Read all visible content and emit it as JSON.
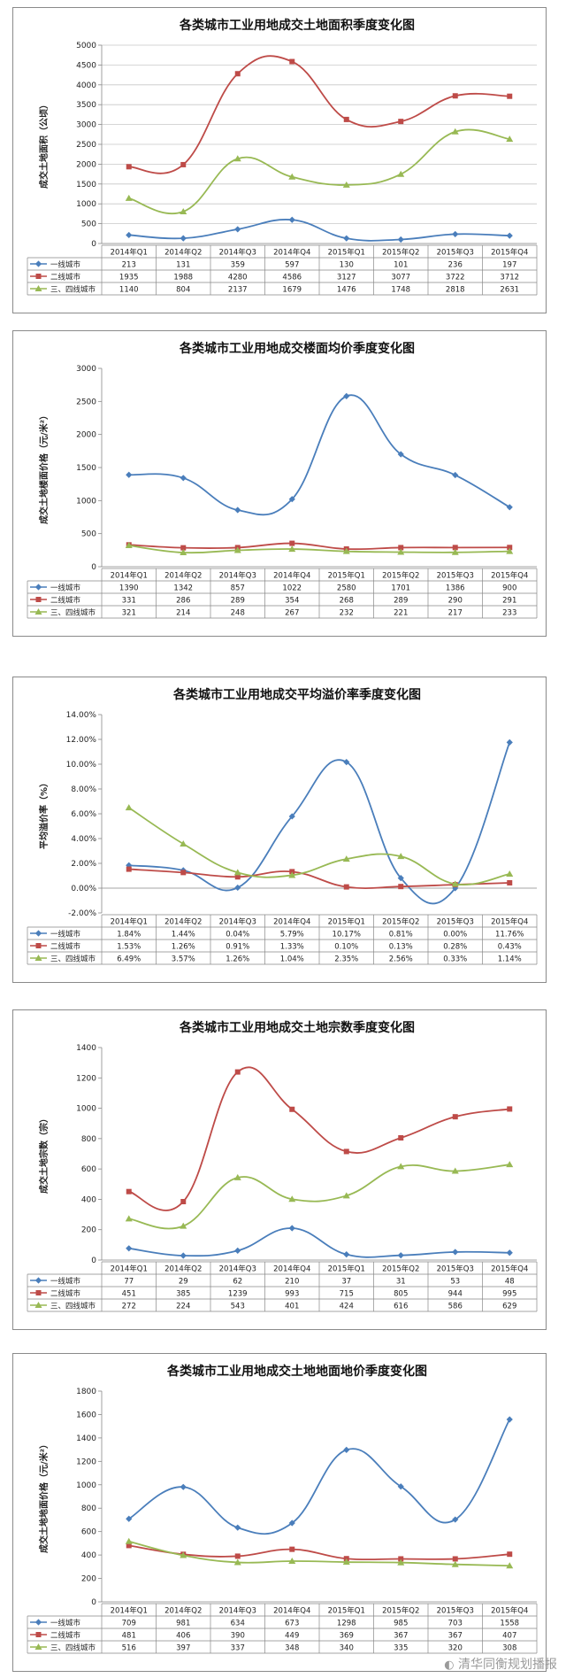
{
  "chart_data": [
    {
      "type": "line",
      "title": "各类城市工业用地成交土地面积季度变化图",
      "ylabel": "成交土地面积（公顷）",
      "ylim": [
        0,
        5000
      ],
      "yticks": [
        0,
        500,
        1000,
        1500,
        2000,
        2500,
        3000,
        3500,
        4000,
        4500,
        5000
      ],
      "categories": [
        "2014年Q1",
        "2014年Q2",
        "2014年Q3",
        "2014年Q4",
        "2015年Q1",
        "2015年Q2",
        "2015年Q3",
        "2015年Q4"
      ],
      "series": [
        {
          "name": "一线城市",
          "color": "#4a7ebb",
          "marker": "diamond",
          "values": [
            213,
            131,
            359,
            597,
            130,
            101,
            236,
            197
          ],
          "labels": [
            "213",
            "131",
            "359",
            "597",
            "130",
            "101",
            "236",
            "197"
          ]
        },
        {
          "name": "二线城市",
          "color": "#be4b48",
          "marker": "square",
          "values": [
            1935,
            1988,
            4280,
            4586,
            3127,
            3077,
            3722,
            3712
          ],
          "labels": [
            "1935",
            "1988",
            "4280",
            "4586",
            "3127",
            "3077",
            "3722",
            "3712"
          ]
        },
        {
          "name": "三、四线城市",
          "color": "#98b954",
          "marker": "triangle",
          "values": [
            1140,
            804,
            2137,
            1679,
            1476,
            1748,
            2818,
            2631
          ],
          "labels": [
            "1140",
            "804",
            "2137",
            "1679",
            "1476",
            "1748",
            "2818",
            "2631"
          ]
        }
      ],
      "grid": true
    },
    {
      "type": "line",
      "title": "各类城市工业用地成交楼面均价季度变化图",
      "ylabel": "成交土地楼面价格（元/米²）",
      "ylim": [
        0,
        3000
      ],
      "yticks": [
        0,
        500,
        1000,
        1500,
        2000,
        2500,
        3000
      ],
      "categories": [
        "2014年Q1",
        "2014年Q2",
        "2014年Q3",
        "2014年Q4",
        "2015年Q1",
        "2015年Q2",
        "2015年Q3",
        "2015年Q4"
      ],
      "series": [
        {
          "name": "一线城市",
          "color": "#4a7ebb",
          "marker": "diamond",
          "values": [
            1390,
            1342,
            857,
            1022,
            2580,
            1701,
            1386,
            900
          ],
          "labels": [
            "1390",
            "1342",
            "857",
            "1022",
            "2580",
            "1701",
            "1386",
            "900"
          ]
        },
        {
          "name": "二线城市",
          "color": "#be4b48",
          "marker": "square",
          "values": [
            331,
            286,
            289,
            354,
            268,
            289,
            290,
            291
          ],
          "labels": [
            "331",
            "286",
            "289",
            "354",
            "268",
            "289",
            "290",
            "291"
          ]
        },
        {
          "name": "三、四线城市",
          "color": "#98b954",
          "marker": "triangle",
          "values": [
            321,
            214,
            248,
            267,
            232,
            221,
            217,
            233
          ],
          "labels": [
            "321",
            "214",
            "248",
            "267",
            "232",
            "221",
            "217",
            "233"
          ]
        }
      ],
      "grid": false
    },
    {
      "type": "line",
      "title": "各类城市工业用地成交平均溢价率季度变化图",
      "ylabel": "平均溢价率（%）",
      "ylim": [
        -2,
        14
      ],
      "yticks": [
        -2,
        0,
        2,
        4,
        6,
        8,
        10,
        12,
        14
      ],
      "ytick_labels": [
        "-2.00%",
        "0.00%",
        "2.00%",
        "4.00%",
        "6.00%",
        "8.00%",
        "10.00%",
        "12.00%",
        "14.00%"
      ],
      "categories": [
        "2014年Q1",
        "2014年Q2",
        "2014年Q3",
        "2014年Q4",
        "2015年Q1",
        "2015年Q2",
        "2015年Q3",
        "2015年Q4"
      ],
      "series": [
        {
          "name": "一线城市",
          "color": "#4a7ebb",
          "marker": "diamond",
          "values": [
            1.84,
            1.44,
            0.04,
            5.79,
            10.17,
            0.81,
            0.0,
            11.76
          ],
          "labels": [
            "1.84%",
            "1.44%",
            "0.04%",
            "5.79%",
            "10.17%",
            "0.81%",
            "0.00%",
            "11.76%"
          ]
        },
        {
          "name": "二线城市",
          "color": "#be4b48",
          "marker": "square",
          "values": [
            1.53,
            1.26,
            0.91,
            1.33,
            0.1,
            0.13,
            0.28,
            0.43
          ],
          "labels": [
            "1.53%",
            "1.26%",
            "0.91%",
            "1.33%",
            "0.10%",
            "0.13%",
            "0.28%",
            "0.43%"
          ]
        },
        {
          "name": "三、四线城市",
          "color": "#98b954",
          "marker": "triangle",
          "values": [
            6.49,
            3.57,
            1.26,
            1.04,
            2.35,
            2.56,
            0.33,
            1.14
          ],
          "labels": [
            "6.49%",
            "3.57%",
            "1.26%",
            "1.04%",
            "2.35%",
            "2.56%",
            "0.33%",
            "1.14%"
          ]
        }
      ],
      "grid": false
    },
    {
      "type": "line",
      "title": "各类城市工业用地成交土地宗数季度变化图",
      "ylabel": "成交土地宗数（宗）",
      "ylim": [
        0,
        1400
      ],
      "yticks": [
        0,
        200,
        400,
        600,
        800,
        1000,
        1200,
        1400
      ],
      "categories": [
        "2014年Q1",
        "2014年Q2",
        "2014年Q3",
        "2014年Q4",
        "2015年Q1",
        "2015年Q2",
        "2015年Q3",
        "2015年Q4"
      ],
      "series": [
        {
          "name": "一线城市",
          "color": "#4a7ebb",
          "marker": "diamond",
          "values": [
            77,
            29,
            62,
            210,
            37,
            31,
            53,
            48
          ],
          "labels": [
            "77",
            "29",
            "62",
            "210",
            "37",
            "31",
            "53",
            "48"
          ]
        },
        {
          "name": "二线城市",
          "color": "#be4b48",
          "marker": "square",
          "values": [
            451,
            385,
            1239,
            993,
            715,
            805,
            944,
            995
          ],
          "labels": [
            "451",
            "385",
            "1239",
            "993",
            "715",
            "805",
            "944",
            "995"
          ]
        },
        {
          "name": "三、四线城市",
          "color": "#98b954",
          "marker": "triangle",
          "values": [
            272,
            224,
            543,
            401,
            424,
            616,
            586,
            629
          ],
          "labels": [
            "272",
            "224",
            "543",
            "401",
            "424",
            "616",
            "586",
            "629"
          ]
        }
      ],
      "grid": false
    },
    {
      "type": "line",
      "title": "各类城市工业用地成交土地地面地价季度变化图",
      "ylabel": "成交土地地面价格（元/米²）",
      "ylim": [
        0,
        1800
      ],
      "yticks": [
        0,
        200,
        400,
        600,
        800,
        1000,
        1200,
        1400,
        1600,
        1800
      ],
      "categories": [
        "2014年Q1",
        "2014年Q2",
        "2014年Q3",
        "2014年Q4",
        "2015年Q1",
        "2015年Q2",
        "2015年Q3",
        "2015年Q4"
      ],
      "series": [
        {
          "name": "一线城市",
          "color": "#4a7ebb",
          "marker": "diamond",
          "values": [
            709,
            981,
            634,
            673,
            1298,
            985,
            703,
            1558
          ],
          "labels": [
            "709",
            "981",
            "634",
            "673",
            "1298",
            "985",
            "703",
            "1558"
          ]
        },
        {
          "name": "二线城市",
          "color": "#be4b48",
          "marker": "square",
          "values": [
            481,
            406,
            390,
            449,
            369,
            367,
            367,
            407
          ],
          "labels": [
            "481",
            "406",
            "390",
            "449",
            "369",
            "367",
            "367",
            "407"
          ]
        },
        {
          "name": "三、四线城市",
          "color": "#98b954",
          "marker": "triangle",
          "values": [
            516,
            397,
            337,
            348,
            340,
            335,
            320,
            308
          ],
          "labels": [
            "516",
            "397",
            "337",
            "348",
            "340",
            "335",
            "320",
            "308"
          ]
        }
      ],
      "grid": false
    }
  ],
  "watermark": "清华同衡规划播报"
}
